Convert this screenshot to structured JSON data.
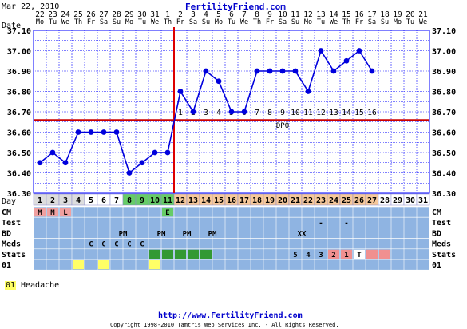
{
  "header": {
    "date": "Mar 22, 2010",
    "site": "FertilityFriend.com"
  },
  "footer": {
    "url": "http://www.FertilityFriend.com",
    "copyright": "Copyright 1998-2010 Tamtris Web Services Inc. - All Rights Reserved."
  },
  "labels": {
    "date_axis": "Date",
    "day_axis": "Day",
    "dpo": "DPO",
    "rows": [
      "CM",
      "Test",
      "BD",
      "Meds",
      "Stats",
      "01"
    ]
  },
  "legend": {
    "code": "01",
    "text": "Headache"
  },
  "colors": {
    "grid": "#0000ff",
    "line": "#0000dd",
    "coverline": "#cc0000",
    "ovulation_line": "#dd0000",
    "row_bg": "#8fb4e2",
    "day_white": "#ffffff",
    "day_menses": "#dddddd",
    "day_fertile": "#66cc66",
    "day_luteal": "#f6c89a",
    "cm_menses": "#f0a0a0",
    "cm_egg_white": "#66cc66",
    "stat_green": "#339933",
    "stat_pink": "#f09090",
    "stat_white": "#ffffff",
    "symptom_yellow": "#ffff66"
  },
  "chart_data": {
    "type": "line",
    "title": "",
    "dates": [
      "22",
      "23",
      "24",
      "25",
      "26",
      "27",
      "28",
      "29",
      "30",
      "31",
      "1",
      "2",
      "3",
      "4",
      "5",
      "6",
      "7",
      "8",
      "9",
      "10",
      "11",
      "12",
      "13",
      "14",
      "15",
      "16",
      "17",
      "18",
      "19",
      "20",
      "21"
    ],
    "weekdays": [
      "Mo",
      "Tu",
      "We",
      "Th",
      "Fr",
      "Sa",
      "Su",
      "Mo",
      "Tu",
      "We",
      "Th",
      "Fr",
      "Sa",
      "Su",
      "Mo",
      "Tu",
      "We",
      "Th",
      "Fr",
      "Sa",
      "Su",
      "Mo",
      "Tu",
      "We",
      "Th",
      "Fr",
      "Sa",
      "Su",
      "Mo",
      "Tu",
      "We"
    ],
    "cycle_days": [
      "1",
      "2",
      "3",
      "4",
      "5",
      "6",
      "7",
      "8",
      "9",
      "10",
      "11",
      "12",
      "13",
      "14",
      "15",
      "16",
      "17",
      "18",
      "19",
      "20",
      "21",
      "22",
      "23",
      "24",
      "25",
      "26",
      "27",
      "28",
      "29",
      "30",
      "31"
    ],
    "temperatures": [
      36.45,
      36.5,
      36.45,
      36.6,
      36.6,
      36.6,
      36.6,
      36.4,
      36.45,
      36.5,
      36.5,
      36.8,
      36.7,
      36.9,
      36.85,
      36.7,
      36.7,
      36.9,
      36.9,
      36.9,
      36.9,
      36.8,
      37.0,
      36.9,
      36.95,
      37.0,
      36.9,
      null,
      null,
      null,
      null
    ],
    "ylim": [
      36.3,
      37.1
    ],
    "yticks": [
      "37.10",
      "37.00",
      "36.90",
      "36.80",
      "36.70",
      "36.60",
      "36.50",
      "36.40",
      "36.30"
    ],
    "coverline": 36.66,
    "ovulation_day_index": 10,
    "dpo_labels": [
      "1",
      "2",
      "3",
      "4",
      "5",
      "6",
      "7",
      "8",
      "9",
      "10",
      "11",
      "12",
      "13",
      "14",
      "15",
      "16"
    ],
    "dpo_start_index": 11,
    "day_types": [
      "menses",
      "menses",
      "menses",
      "menses",
      "white",
      "white",
      "white",
      "fertile",
      "fertile",
      "fertile",
      "fertile",
      "luteal",
      "luteal",
      "luteal",
      "luteal",
      "luteal",
      "luteal",
      "luteal",
      "luteal",
      "luteal",
      "luteal",
      "luteal",
      "luteal",
      "luteal",
      "luteal",
      "luteal",
      "luteal",
      "white",
      "white",
      "white",
      "white"
    ],
    "cm": [
      {
        "i": 0,
        "v": "M",
        "c": "menses"
      },
      {
        "i": 1,
        "v": "M",
        "c": "menses"
      },
      {
        "i": 2,
        "v": "L",
        "c": "menses"
      },
      {
        "i": 10,
        "v": "E",
        "c": "egg_white"
      }
    ],
    "test": [
      {
        "i": 22,
        "v": "-"
      },
      {
        "i": 24,
        "v": "-"
      }
    ],
    "bd": [
      {
        "i": 6,
        "v": "PM"
      },
      {
        "i": 9,
        "v": "PM"
      },
      {
        "i": 11,
        "v": "PM"
      },
      {
        "i": 13,
        "v": "PM"
      },
      {
        "i": 20,
        "v": "XX"
      }
    ],
    "meds": [
      {
        "i": 4,
        "v": "C"
      },
      {
        "i": 5,
        "v": "C"
      },
      {
        "i": 6,
        "v": "C"
      },
      {
        "i": 7,
        "v": "C"
      },
      {
        "i": 8,
        "v": "C"
      }
    ],
    "stats": [
      {
        "i": 9,
        "v": "",
        "c": "green"
      },
      {
        "i": 10,
        "v": "",
        "c": "green"
      },
      {
        "i": 11,
        "v": "",
        "c": "green"
      },
      {
        "i": 12,
        "v": "",
        "c": "green"
      },
      {
        "i": 13,
        "v": "",
        "c": "green"
      },
      {
        "i": 20,
        "v": "5",
        "c": ""
      },
      {
        "i": 21,
        "v": "4",
        "c": ""
      },
      {
        "i": 22,
        "v": "3",
        "c": ""
      },
      {
        "i": 23,
        "v": "2",
        "c": "pink"
      },
      {
        "i": 24,
        "v": "1",
        "c": "pink"
      },
      {
        "i": 25,
        "v": "T",
        "c": "white"
      },
      {
        "i": 26,
        "v": "",
        "c": "pink"
      },
      {
        "i": 27,
        "v": "",
        "c": "pink"
      }
    ],
    "symptoms": [
      3,
      5,
      9
    ]
  }
}
